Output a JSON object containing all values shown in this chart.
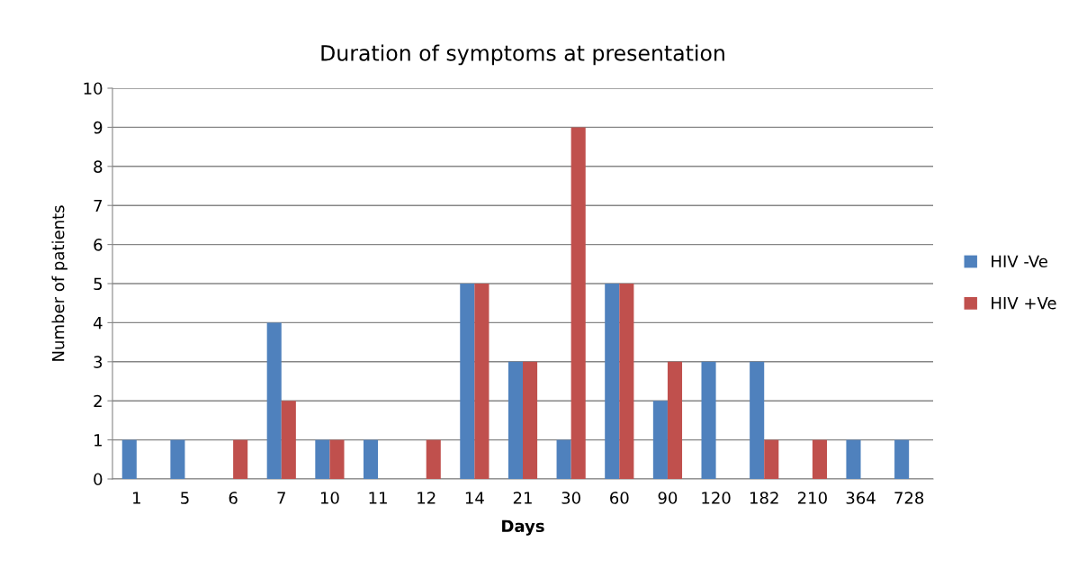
{
  "chart_data": {
    "type": "bar",
    "title": "Duration of symptoms at presentation",
    "xlabel": "Days",
    "ylabel": "Number of patients",
    "categories": [
      "1",
      "5",
      "6",
      "7",
      "10",
      "11",
      "12",
      "14",
      "21",
      "30",
      "60",
      "90",
      "120",
      "182",
      "210",
      "364",
      "728"
    ],
    "series": [
      {
        "name": "HIV -Ve",
        "color": "#4f81bd",
        "values": [
          1,
          1,
          0,
          4,
          1,
          1,
          0,
          5,
          3,
          1,
          5,
          2,
          3,
          3,
          0,
          1,
          1
        ]
      },
      {
        "name": "HIV +Ve",
        "color": "#c0504d",
        "values": [
          0,
          0,
          1,
          2,
          1,
          0,
          1,
          5,
          3,
          9,
          5,
          3,
          0,
          1,
          1,
          0,
          0
        ]
      }
    ],
    "ylim": [
      0,
      10
    ],
    "yticks": [
      0,
      1,
      2,
      3,
      4,
      5,
      6,
      7,
      8,
      9,
      10
    ],
    "grid": "y",
    "legend": "right"
  }
}
